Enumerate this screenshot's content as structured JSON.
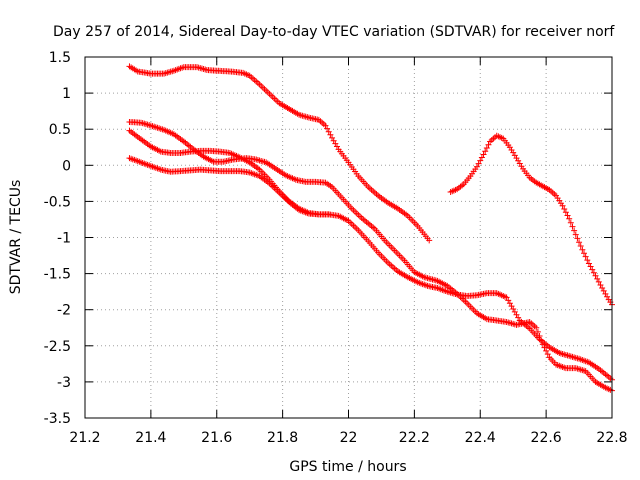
{
  "chart_data": {
    "type": "scatter",
    "title": "Day 257 of 2014, Sidereal Day-to-day VTEC variation (SDTVAR) for receiver norf",
    "xlabel": "GPS time / hours",
    "ylabel": "SDTVAR / TECUs",
    "xlim": [
      21.2,
      22.8
    ],
    "ylim": [
      -3.5,
      1.5
    ],
    "xticks": [
      21.2,
      21.4,
      21.6,
      21.8,
      22,
      22.2,
      22.4,
      22.6,
      22.8
    ],
    "yticks": [
      -3.5,
      -3,
      -2.5,
      -2,
      -1.5,
      -1,
      -0.5,
      0,
      0.5,
      1,
      1.5
    ],
    "xtick_labels": [
      "21.2",
      "21.4",
      "21.6",
      "21.8",
      "22",
      "22.2",
      "22.4",
      "22.6",
      "22.8"
    ],
    "ytick_labels": [
      "-3.5",
      "-3",
      "-2.5",
      "-2",
      "-1.5",
      "-1",
      "-0.5",
      "0",
      "0.5",
      "1",
      "1.5"
    ],
    "grid": true,
    "marker": "+",
    "color": "#ff0000",
    "series": [
      {
        "name": "track-1",
        "points": [
          [
            21.335,
            1.37
          ],
          [
            21.36,
            1.3
          ],
          [
            21.4,
            1.27
          ],
          [
            21.44,
            1.27
          ],
          [
            21.47,
            1.31
          ],
          [
            21.5,
            1.36
          ],
          [
            21.54,
            1.36
          ],
          [
            21.57,
            1.32
          ],
          [
            21.6,
            1.31
          ],
          [
            21.64,
            1.3
          ],
          [
            21.68,
            1.28
          ],
          [
            21.7,
            1.24
          ],
          [
            21.73,
            1.12
          ],
          [
            21.76,
            0.99
          ],
          [
            21.79,
            0.86
          ],
          [
            21.82,
            0.78
          ],
          [
            21.85,
            0.7
          ],
          [
            21.88,
            0.66
          ],
          [
            21.91,
            0.63
          ],
          [
            21.93,
            0.55
          ],
          [
            21.95,
            0.38
          ],
          [
            21.97,
            0.22
          ],
          [
            22.0,
            0.04
          ],
          [
            22.03,
            -0.15
          ],
          [
            22.06,
            -0.3
          ],
          [
            22.09,
            -0.42
          ],
          [
            22.12,
            -0.52
          ],
          [
            22.15,
            -0.6
          ],
          [
            22.18,
            -0.7
          ],
          [
            22.21,
            -0.84
          ],
          [
            22.245,
            -1.04
          ]
        ]
      },
      {
        "name": "track-2",
        "points": [
          [
            21.335,
            0.6
          ],
          [
            21.37,
            0.59
          ],
          [
            21.4,
            0.55
          ],
          [
            21.44,
            0.49
          ],
          [
            21.47,
            0.43
          ],
          [
            21.5,
            0.33
          ],
          [
            21.53,
            0.22
          ],
          [
            21.56,
            0.12
          ],
          [
            21.59,
            0.05
          ],
          [
            21.62,
            0.05
          ],
          [
            21.65,
            0.08
          ],
          [
            21.69,
            0.1
          ],
          [
            21.72,
            0.08
          ],
          [
            21.75,
            0.04
          ],
          [
            21.78,
            -0.05
          ],
          [
            21.81,
            -0.14
          ],
          [
            21.84,
            -0.2
          ],
          [
            21.87,
            -0.23
          ],
          [
            21.9,
            -0.23
          ],
          [
            21.93,
            -0.24
          ],
          [
            21.95,
            -0.3
          ],
          [
            21.98,
            -0.45
          ],
          [
            22.01,
            -0.6
          ],
          [
            22.04,
            -0.73
          ],
          [
            22.08,
            -0.88
          ],
          [
            22.11,
            -1.04
          ],
          [
            22.14,
            -1.18
          ],
          [
            22.17,
            -1.32
          ],
          [
            22.2,
            -1.48
          ],
          [
            22.23,
            -1.55
          ],
          [
            22.27,
            -1.6
          ],
          [
            22.3,
            -1.67
          ],
          [
            22.33,
            -1.78
          ],
          [
            22.36,
            -1.91
          ],
          [
            22.39,
            -2.05
          ],
          [
            22.42,
            -2.13
          ],
          [
            22.45,
            -2.15
          ],
          [
            22.48,
            -2.17
          ],
          [
            22.51,
            -2.21
          ],
          [
            22.53,
            -2.19
          ],
          [
            22.55,
            -2.17
          ],
          [
            22.57,
            -2.25
          ],
          [
            22.59,
            -2.48
          ],
          [
            22.61,
            -2.66
          ],
          [
            22.63,
            -2.76
          ],
          [
            22.66,
            -2.81
          ],
          [
            22.69,
            -2.81
          ],
          [
            22.72,
            -2.85
          ],
          [
            22.75,
            -3.0
          ],
          [
            22.78,
            -3.08
          ],
          [
            22.8,
            -3.12
          ]
        ]
      },
      {
        "name": "track-3",
        "points": [
          [
            21.335,
            0.48
          ],
          [
            21.37,
            0.36
          ],
          [
            21.4,
            0.26
          ],
          [
            21.43,
            0.19
          ],
          [
            21.46,
            0.17
          ],
          [
            21.49,
            0.17
          ],
          [
            21.52,
            0.19
          ],
          [
            21.55,
            0.2
          ],
          [
            21.58,
            0.2
          ],
          [
            21.61,
            0.19
          ],
          [
            21.64,
            0.17
          ],
          [
            21.67,
            0.11
          ],
          [
            21.7,
            0.04
          ],
          [
            21.73,
            -0.06
          ],
          [
            21.76,
            -0.2
          ],
          [
            21.79,
            -0.36
          ],
          [
            21.82,
            -0.5
          ],
          [
            21.85,
            -0.6
          ],
          [
            21.88,
            -0.66
          ],
          [
            21.91,
            -0.68
          ],
          [
            21.94,
            -0.68
          ],
          [
            21.97,
            -0.7
          ],
          [
            22.0,
            -0.77
          ],
          [
            22.03,
            -0.9
          ],
          [
            22.06,
            -1.05
          ],
          [
            22.09,
            -1.21
          ],
          [
            22.12,
            -1.35
          ],
          [
            22.15,
            -1.47
          ],
          [
            22.18,
            -1.55
          ],
          [
            22.21,
            -1.62
          ],
          [
            22.24,
            -1.67
          ],
          [
            22.27,
            -1.7
          ],
          [
            22.3,
            -1.75
          ],
          [
            22.33,
            -1.79
          ],
          [
            22.36,
            -1.81
          ],
          [
            22.39,
            -1.8
          ],
          [
            22.42,
            -1.77
          ],
          [
            22.45,
            -1.77
          ],
          [
            22.48,
            -1.83
          ],
          [
            22.5,
            -1.99
          ],
          [
            22.52,
            -2.15
          ],
          [
            22.55,
            -2.26
          ],
          [
            22.58,
            -2.41
          ],
          [
            22.61,
            -2.52
          ],
          [
            22.64,
            -2.6
          ],
          [
            22.67,
            -2.64
          ],
          [
            22.7,
            -2.68
          ],
          [
            22.73,
            -2.73
          ],
          [
            22.76,
            -2.82
          ],
          [
            22.79,
            -2.93
          ],
          [
            22.8,
            -2.97
          ]
        ]
      },
      {
        "name": "track-4",
        "points": [
          [
            21.335,
            0.1
          ],
          [
            21.37,
            0.04
          ],
          [
            21.4,
            -0.01
          ],
          [
            21.43,
            -0.06
          ],
          [
            21.46,
            -0.09
          ],
          [
            21.49,
            -0.08
          ],
          [
            21.52,
            -0.07
          ],
          [
            21.55,
            -0.06
          ],
          [
            21.58,
            -0.07
          ],
          [
            21.61,
            -0.08
          ],
          [
            21.64,
            -0.08
          ],
          [
            21.67,
            -0.08
          ],
          [
            21.7,
            -0.1
          ],
          [
            21.73,
            -0.15
          ],
          [
            21.76,
            -0.25
          ],
          [
            21.79,
            -0.38
          ],
          [
            21.82,
            -0.51
          ],
          [
            21.85,
            -0.62
          ],
          [
            21.88,
            -0.67
          ],
          [
            21.91,
            -0.68
          ],
          [
            21.94,
            -0.68
          ]
        ]
      },
      {
        "name": "track-5",
        "points": [
          [
            22.31,
            -0.37
          ],
          [
            22.33,
            -0.33
          ],
          [
            22.35,
            -0.26
          ],
          [
            22.37,
            -0.15
          ],
          [
            22.39,
            -0.02
          ],
          [
            22.41,
            0.15
          ],
          [
            22.43,
            0.33
          ],
          [
            22.45,
            0.41
          ],
          [
            22.47,
            0.37
          ],
          [
            22.49,
            0.25
          ],
          [
            22.51,
            0.1
          ],
          [
            22.53,
            -0.05
          ],
          [
            22.55,
            -0.17
          ],
          [
            22.57,
            -0.24
          ],
          [
            22.59,
            -0.29
          ],
          [
            22.61,
            -0.34
          ],
          [
            22.63,
            -0.42
          ],
          [
            22.65,
            -0.56
          ],
          [
            22.67,
            -0.74
          ],
          [
            22.69,
            -0.96
          ],
          [
            22.71,
            -1.17
          ],
          [
            22.73,
            -1.36
          ],
          [
            22.75,
            -1.53
          ],
          [
            22.77,
            -1.7
          ],
          [
            22.79,
            -1.86
          ],
          [
            22.8,
            -1.93
          ]
        ]
      }
    ]
  }
}
